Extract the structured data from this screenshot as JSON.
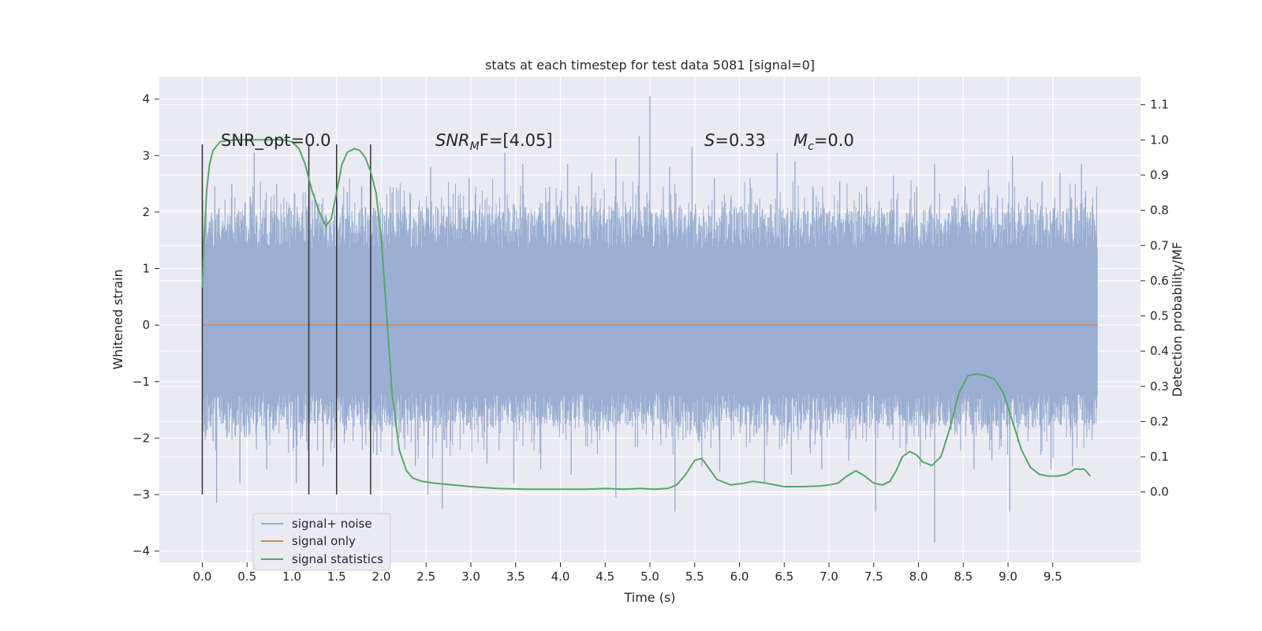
{
  "chart_data": {
    "type": "line",
    "title": "stats at each timestep for test data 5081 [signal=0]",
    "xlabel": "Time (s)",
    "ylabel": "Whitened strain",
    "y2label": "Detection probability/MF",
    "xlim": [
      -0.48,
      10.48
    ],
    "ylim": [
      -4.2,
      4.4
    ],
    "y2lim": [
      -0.2,
      1.18
    ],
    "x_ticks": [
      0.0,
      0.5,
      1.0,
      1.5,
      2.0,
      2.5,
      3.0,
      3.5,
      4.0,
      4.5,
      5.0,
      5.5,
      6.0,
      6.5,
      7.0,
      7.5,
      8.0,
      8.5,
      9.0,
      9.5
    ],
    "x_tick_labels": [
      "0.0",
      "0.5",
      "1.0",
      "1.5",
      "2.0",
      "2.5",
      "3.0",
      "3.5",
      "4.0",
      "4.5",
      "5.0",
      "5.5",
      "6.0",
      "6.5",
      "7.0",
      "7.5",
      "8.0",
      "8.5",
      "9.0",
      "9.5"
    ],
    "y_ticks": [
      4,
      3,
      2,
      1,
      0,
      -1,
      -2,
      -3,
      -4
    ],
    "y_tick_labels": [
      "4",
      "3",
      "2",
      "1",
      "0",
      "−1",
      "−2",
      "−3",
      "−4"
    ],
    "y2_ticks": [
      1.1,
      1.0,
      0.9,
      0.8,
      0.7,
      0.6,
      0.5,
      0.4,
      0.3,
      0.2,
      0.1,
      0.0
    ],
    "y2_tick_labels": [
      "1.1",
      "1.0",
      "0.9",
      "0.8",
      "0.7",
      "0.6",
      "0.5",
      "0.4",
      "0.3",
      "0.2",
      "0.1",
      "0.0"
    ],
    "grid": true,
    "legend_position": "lower-left",
    "colors": {
      "background": "#eaeaf2",
      "grid": "#ffffff",
      "noise": "#9aaed2",
      "signal_only": "#dd8452",
      "statistics": "#55a868",
      "window_lines": "#333333"
    },
    "series": [
      {
        "name": "signal+ noise",
        "axis": "left",
        "x_range": [
          0.0,
          10.0
        ],
        "core_range": [
          -1.2,
          1.35
        ],
        "spikes": [
          [
            0.14,
            2.45
          ],
          [
            0.33,
            2.5
          ],
          [
            0.58,
            3.05
          ],
          [
            0.83,
            2.5
          ],
          [
            1.03,
            2.3
          ],
          [
            1.3,
            2.15
          ],
          [
            1.62,
            2.35
          ],
          [
            1.78,
            2.45
          ],
          [
            2.32,
            2.35
          ],
          [
            2.55,
            2.8
          ],
          [
            2.98,
            2.6
          ],
          [
            3.38,
            3.05
          ],
          [
            3.58,
            2.85
          ],
          [
            3.88,
            2.45
          ],
          [
            4.08,
            2.85
          ],
          [
            4.35,
            2.7
          ],
          [
            4.62,
            2.95
          ],
          [
            4.88,
            3.35
          ],
          [
            5.0,
            4.05
          ],
          [
            5.22,
            2.8
          ],
          [
            5.47,
            3.15
          ],
          [
            5.72,
            2.6
          ],
          [
            6.12,
            2.6
          ],
          [
            6.42,
            3.05
          ],
          [
            6.62,
            2.9
          ],
          [
            6.82,
            2.45
          ],
          [
            7.12,
            2.55
          ],
          [
            7.42,
            2.45
          ],
          [
            7.72,
            2.65
          ],
          [
            7.98,
            2.45
          ],
          [
            8.18,
            2.85
          ],
          [
            8.52,
            2.45
          ],
          [
            8.78,
            2.75
          ],
          [
            9.05,
            3.0
          ],
          [
            9.38,
            2.55
          ],
          [
            9.58,
            2.7
          ],
          [
            9.82,
            2.85
          ],
          [
            0.12,
            -2.05
          ],
          [
            0.16,
            -3.15
          ],
          [
            0.42,
            -2.8
          ],
          [
            0.72,
            -2.55
          ],
          [
            1.05,
            -2.8
          ],
          [
            1.35,
            -2.5
          ],
          [
            1.95,
            -2.3
          ],
          [
            2.38,
            -2.5
          ],
          [
            2.52,
            -3.0
          ],
          [
            2.68,
            -3.25
          ],
          [
            3.18,
            -2.45
          ],
          [
            3.48,
            -2.8
          ],
          [
            3.78,
            -2.55
          ],
          [
            4.12,
            -2.65
          ],
          [
            4.62,
            -3.05
          ],
          [
            5.28,
            -3.3
          ],
          [
            5.58,
            -2.5
          ],
          [
            5.78,
            -2.6
          ],
          [
            6.28,
            -2.8
          ],
          [
            6.58,
            -2.65
          ],
          [
            6.92,
            -2.55
          ],
          [
            7.22,
            -2.4
          ],
          [
            7.52,
            -3.3
          ],
          [
            8.02,
            -2.5
          ],
          [
            8.18,
            -3.85
          ],
          [
            8.62,
            -2.55
          ],
          [
            8.82,
            -2.4
          ],
          [
            9.02,
            -3.3
          ],
          [
            9.48,
            -2.55
          ],
          [
            9.72,
            -2.5
          ]
        ]
      },
      {
        "name": "signal only",
        "axis": "left",
        "x": [
          0.0,
          10.0
        ],
        "y": [
          0.0,
          0.0
        ]
      },
      {
        "name": "signal statistics",
        "axis": "right",
        "x": [
          0.0,
          0.02,
          0.05,
          0.08,
          0.12,
          0.2,
          0.35,
          0.5,
          0.7,
          0.9,
          1.0,
          1.08,
          1.15,
          1.22,
          1.3,
          1.38,
          1.44,
          1.5,
          1.56,
          1.62,
          1.7,
          1.76,
          1.82,
          1.88,
          1.94,
          2.0,
          2.06,
          2.12,
          2.2,
          2.28,
          2.35,
          2.45,
          2.6,
          2.8,
          3.0,
          3.3,
          3.6,
          4.0,
          4.3,
          4.5,
          4.7,
          4.9,
          5.05,
          5.2,
          5.3,
          5.4,
          5.5,
          5.58,
          5.65,
          5.75,
          5.9,
          6.05,
          6.15,
          6.3,
          6.5,
          6.7,
          6.9,
          7.0,
          7.1,
          7.2,
          7.3,
          7.4,
          7.5,
          7.6,
          7.68,
          7.75,
          7.82,
          7.9,
          7.98,
          8.05,
          8.15,
          8.25,
          8.35,
          8.45,
          8.55,
          8.65,
          8.75,
          8.85,
          8.95,
          9.05,
          9.15,
          9.25,
          9.35,
          9.45,
          9.55,
          9.65,
          9.75,
          9.85,
          9.92
        ],
        "y": [
          0.58,
          0.72,
          0.86,
          0.93,
          0.97,
          0.995,
          1.0,
          1.0,
          1.0,
          1.0,
          0.995,
          0.975,
          0.93,
          0.86,
          0.8,
          0.755,
          0.775,
          0.85,
          0.93,
          0.965,
          0.975,
          0.97,
          0.95,
          0.91,
          0.85,
          0.72,
          0.5,
          0.28,
          0.12,
          0.06,
          0.04,
          0.03,
          0.025,
          0.02,
          0.015,
          0.01,
          0.008,
          0.008,
          0.008,
          0.01,
          0.008,
          0.01,
          0.008,
          0.01,
          0.02,
          0.05,
          0.09,
          0.095,
          0.07,
          0.035,
          0.02,
          0.025,
          0.03,
          0.025,
          0.015,
          0.015,
          0.017,
          0.02,
          0.025,
          0.045,
          0.06,
          0.045,
          0.025,
          0.02,
          0.03,
          0.06,
          0.1,
          0.115,
          0.105,
          0.085,
          0.075,
          0.1,
          0.18,
          0.28,
          0.33,
          0.335,
          0.33,
          0.32,
          0.28,
          0.2,
          0.12,
          0.07,
          0.05,
          0.045,
          0.045,
          0.05,
          0.065,
          0.065,
          0.045
        ]
      }
    ],
    "window_lines": {
      "x": [
        0.0,
        1.19,
        1.5,
        1.88
      ],
      "y_range": [
        -3.0,
        3.2
      ]
    },
    "annotations": {
      "snr_opt": "SNR_opt=0.0",
      "snr_mf_prefix": "SNR",
      "snr_mf_sub": "M",
      "snr_mf_rest": "F=[4.05]",
      "s_prefix": "S",
      "s_value": "=0.33",
      "mc_prefix": "M",
      "mc_sub": "c",
      "mc_value": "=0.0"
    }
  }
}
